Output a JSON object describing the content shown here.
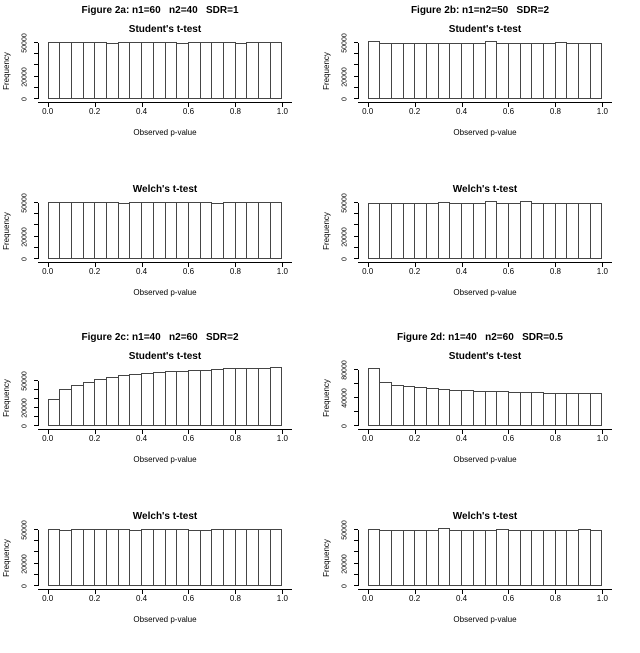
{
  "page": {
    "background": "#ffffff",
    "text_color": "#000000"
  },
  "chart_data": {
    "type": "bar",
    "subtype": "histogram-grid",
    "xlabel": "Observed p-value",
    "ylabel": "Frequency",
    "bins": 20,
    "bin_width": 0.05,
    "x_range": [
      0,
      1
    ],
    "grid": false,
    "legend": "none",
    "colors": {
      "bar_fill": "#ffffff",
      "bar_border": "#454545",
      "axis": "#000000",
      "text": "#000000"
    },
    "x_ticks": [
      {
        "v": 0.0,
        "label": "0.0"
      },
      {
        "v": 0.2,
        "label": "0.2"
      },
      {
        "v": 0.4,
        "label": "0.4"
      },
      {
        "v": 0.6,
        "label": "0.6"
      },
      {
        "v": 0.8,
        "label": "0.8"
      },
      {
        "v": 1.0,
        "label": "1.0"
      }
    ],
    "figures": [
      {
        "id": "2a",
        "title": "Figure 2a: n1=60   n2=40   SDR=1",
        "charts": [
          {
            "title": "Student's t-test",
            "ylim": [
              0,
              53500
            ],
            "y_ticks": [
              {
                "v": 0,
                "label": "0"
              },
              {
                "v": 10000,
                "label": ""
              },
              {
                "v": 20000,
                "label": "20000"
              },
              {
                "v": 30000,
                "label": ""
              },
              {
                "v": 40000,
                "label": ""
              },
              {
                "v": 50000,
                "label": "50000"
              }
            ],
            "values": [
              50700,
              50400,
              50600,
              51000,
              50900,
              50300,
              50500,
              50800,
              50400,
              50600,
              50900,
              50200,
              50700,
              51000,
              50500,
              50800,
              50300,
              50900,
              50600,
              50700
            ]
          },
          {
            "title": "Welch's t-test",
            "ylim": [
              0,
              53500
            ],
            "y_ticks": [
              {
                "v": 0,
                "label": "0"
              },
              {
                "v": 10000,
                "label": ""
              },
              {
                "v": 20000,
                "label": "20000"
              },
              {
                "v": 30000,
                "label": ""
              },
              {
                "v": 40000,
                "label": ""
              },
              {
                "v": 50000,
                "label": "50000"
              }
            ],
            "values": [
              50600,
              50900,
              50400,
              50700,
              50500,
              50800,
              50300,
              50600,
              51000,
              50500,
              50700,
              50400,
              50900,
              50600,
              50200,
              50800,
              51100,
              50500,
              50700,
              50600
            ]
          }
        ]
      },
      {
        "id": "2b",
        "title": "Figure 2b: n1=n2=50   SDR=2",
        "charts": [
          {
            "title": "Student's t-test",
            "ylim": [
              0,
              53500
            ],
            "y_ticks": [
              {
                "v": 0,
                "label": "0"
              },
              {
                "v": 10000,
                "label": ""
              },
              {
                "v": 20000,
                "label": "20000"
              },
              {
                "v": 30000,
                "label": ""
              },
              {
                "v": 40000,
                "label": ""
              },
              {
                "v": 50000,
                "label": "50000"
              }
            ],
            "values": [
              51600,
              50200,
              49900,
              50100,
              50000,
              50200,
              49800,
              50100,
              49700,
              50200,
              51700,
              50300,
              50000,
              50300,
              49900,
              50100,
              50400,
              50000,
              50200,
              49900
            ]
          },
          {
            "title": "Welch's t-test",
            "ylim": [
              0,
              53500
            ],
            "y_ticks": [
              {
                "v": 0,
                "label": "0"
              },
              {
                "v": 10000,
                "label": ""
              },
              {
                "v": 20000,
                "label": "20000"
              },
              {
                "v": 30000,
                "label": ""
              },
              {
                "v": 40000,
                "label": ""
              },
              {
                "v": 50000,
                "label": "50000"
              }
            ],
            "values": [
              50100,
              50000,
              50300,
              49900,
              50200,
              50000,
              50400,
              49800,
              50100,
              50200,
              51400,
              50300,
              50000,
              51300,
              50200,
              49900,
              50300,
              50000,
              50100,
              50000
            ]
          }
        ]
      },
      {
        "id": "2c",
        "title": "Figure 2c: n1=40   n2=60   SDR=2",
        "charts": [
          {
            "title": "Student's t-test",
            "ylim": [
              0,
              66500
            ],
            "y_ticks": [
              {
                "v": 0,
                "label": "0"
              },
              {
                "v": 10000,
                "label": ""
              },
              {
                "v": 20000,
                "label": "20000"
              },
              {
                "v": 30000,
                "label": ""
              },
              {
                "v": 40000,
                "label": ""
              },
              {
                "v": 50000,
                "label": "50000"
              }
            ],
            "values": [
              30000,
              41000,
              46000,
              49000,
              52000,
              54000,
              56000,
              57500,
              58500,
              59500,
              60500,
              61000,
              62000,
              62500,
              63000,
              64000,
              64500,
              64500,
              64800,
              65200
            ]
          },
          {
            "title": "Welch's t-test",
            "ylim": [
              0,
              53500
            ],
            "y_ticks": [
              {
                "v": 0,
                "label": "0"
              },
              {
                "v": 10000,
                "label": ""
              },
              {
                "v": 20000,
                "label": "20000"
              },
              {
                "v": 30000,
                "label": ""
              },
              {
                "v": 40000,
                "label": ""
              },
              {
                "v": 50000,
                "label": "50000"
              }
            ],
            "values": [
              50600,
              50300,
              50700,
              50400,
              50800,
              51000,
              50500,
              50200,
              50600,
              50900,
              50400,
              50700,
              50300,
              49900,
              50600,
              50800,
              50400,
              50600,
              51000,
              50500
            ]
          }
        ]
      },
      {
        "id": "2d",
        "title": "Figure 2d: n1=40   n2=60   SDR=0.5",
        "charts": [
          {
            "title": "Student's t-test",
            "ylim": [
              0,
              86000
            ],
            "y_ticks": [
              {
                "v": 0,
                "label": "0"
              },
              {
                "v": 20000,
                "label": ""
              },
              {
                "v": 40000,
                "label": "40000"
              },
              {
                "v": 60000,
                "label": ""
              },
              {
                "v": 80000,
                "label": "80000"
              }
            ],
            "values": [
              83500,
              63500,
              58500,
              57000,
              55500,
              54000,
              53000,
              52000,
              51000,
              50500,
              50000,
              49500,
              49000,
              48500,
              48500,
              48000,
              47500,
              47000,
              47000,
              47000
            ]
          },
          {
            "title": "Welch's t-test",
            "ylim": [
              0,
              53500
            ],
            "y_ticks": [
              {
                "v": 0,
                "label": "0"
              },
              {
                "v": 10000,
                "label": ""
              },
              {
                "v": 20000,
                "label": "20000"
              },
              {
                "v": 30000,
                "label": ""
              },
              {
                "v": 40000,
                "label": ""
              },
              {
                "v": 50000,
                "label": "50000"
              }
            ],
            "values": [
              50400,
              50100,
              50300,
              49900,
              50200,
              50000,
              51300,
              50100,
              49800,
              50300,
              50000,
              50400,
              50200,
              49900,
              50100,
              50300,
              50000,
              50200,
              50400,
              50100
            ]
          }
        ]
      }
    ]
  }
}
